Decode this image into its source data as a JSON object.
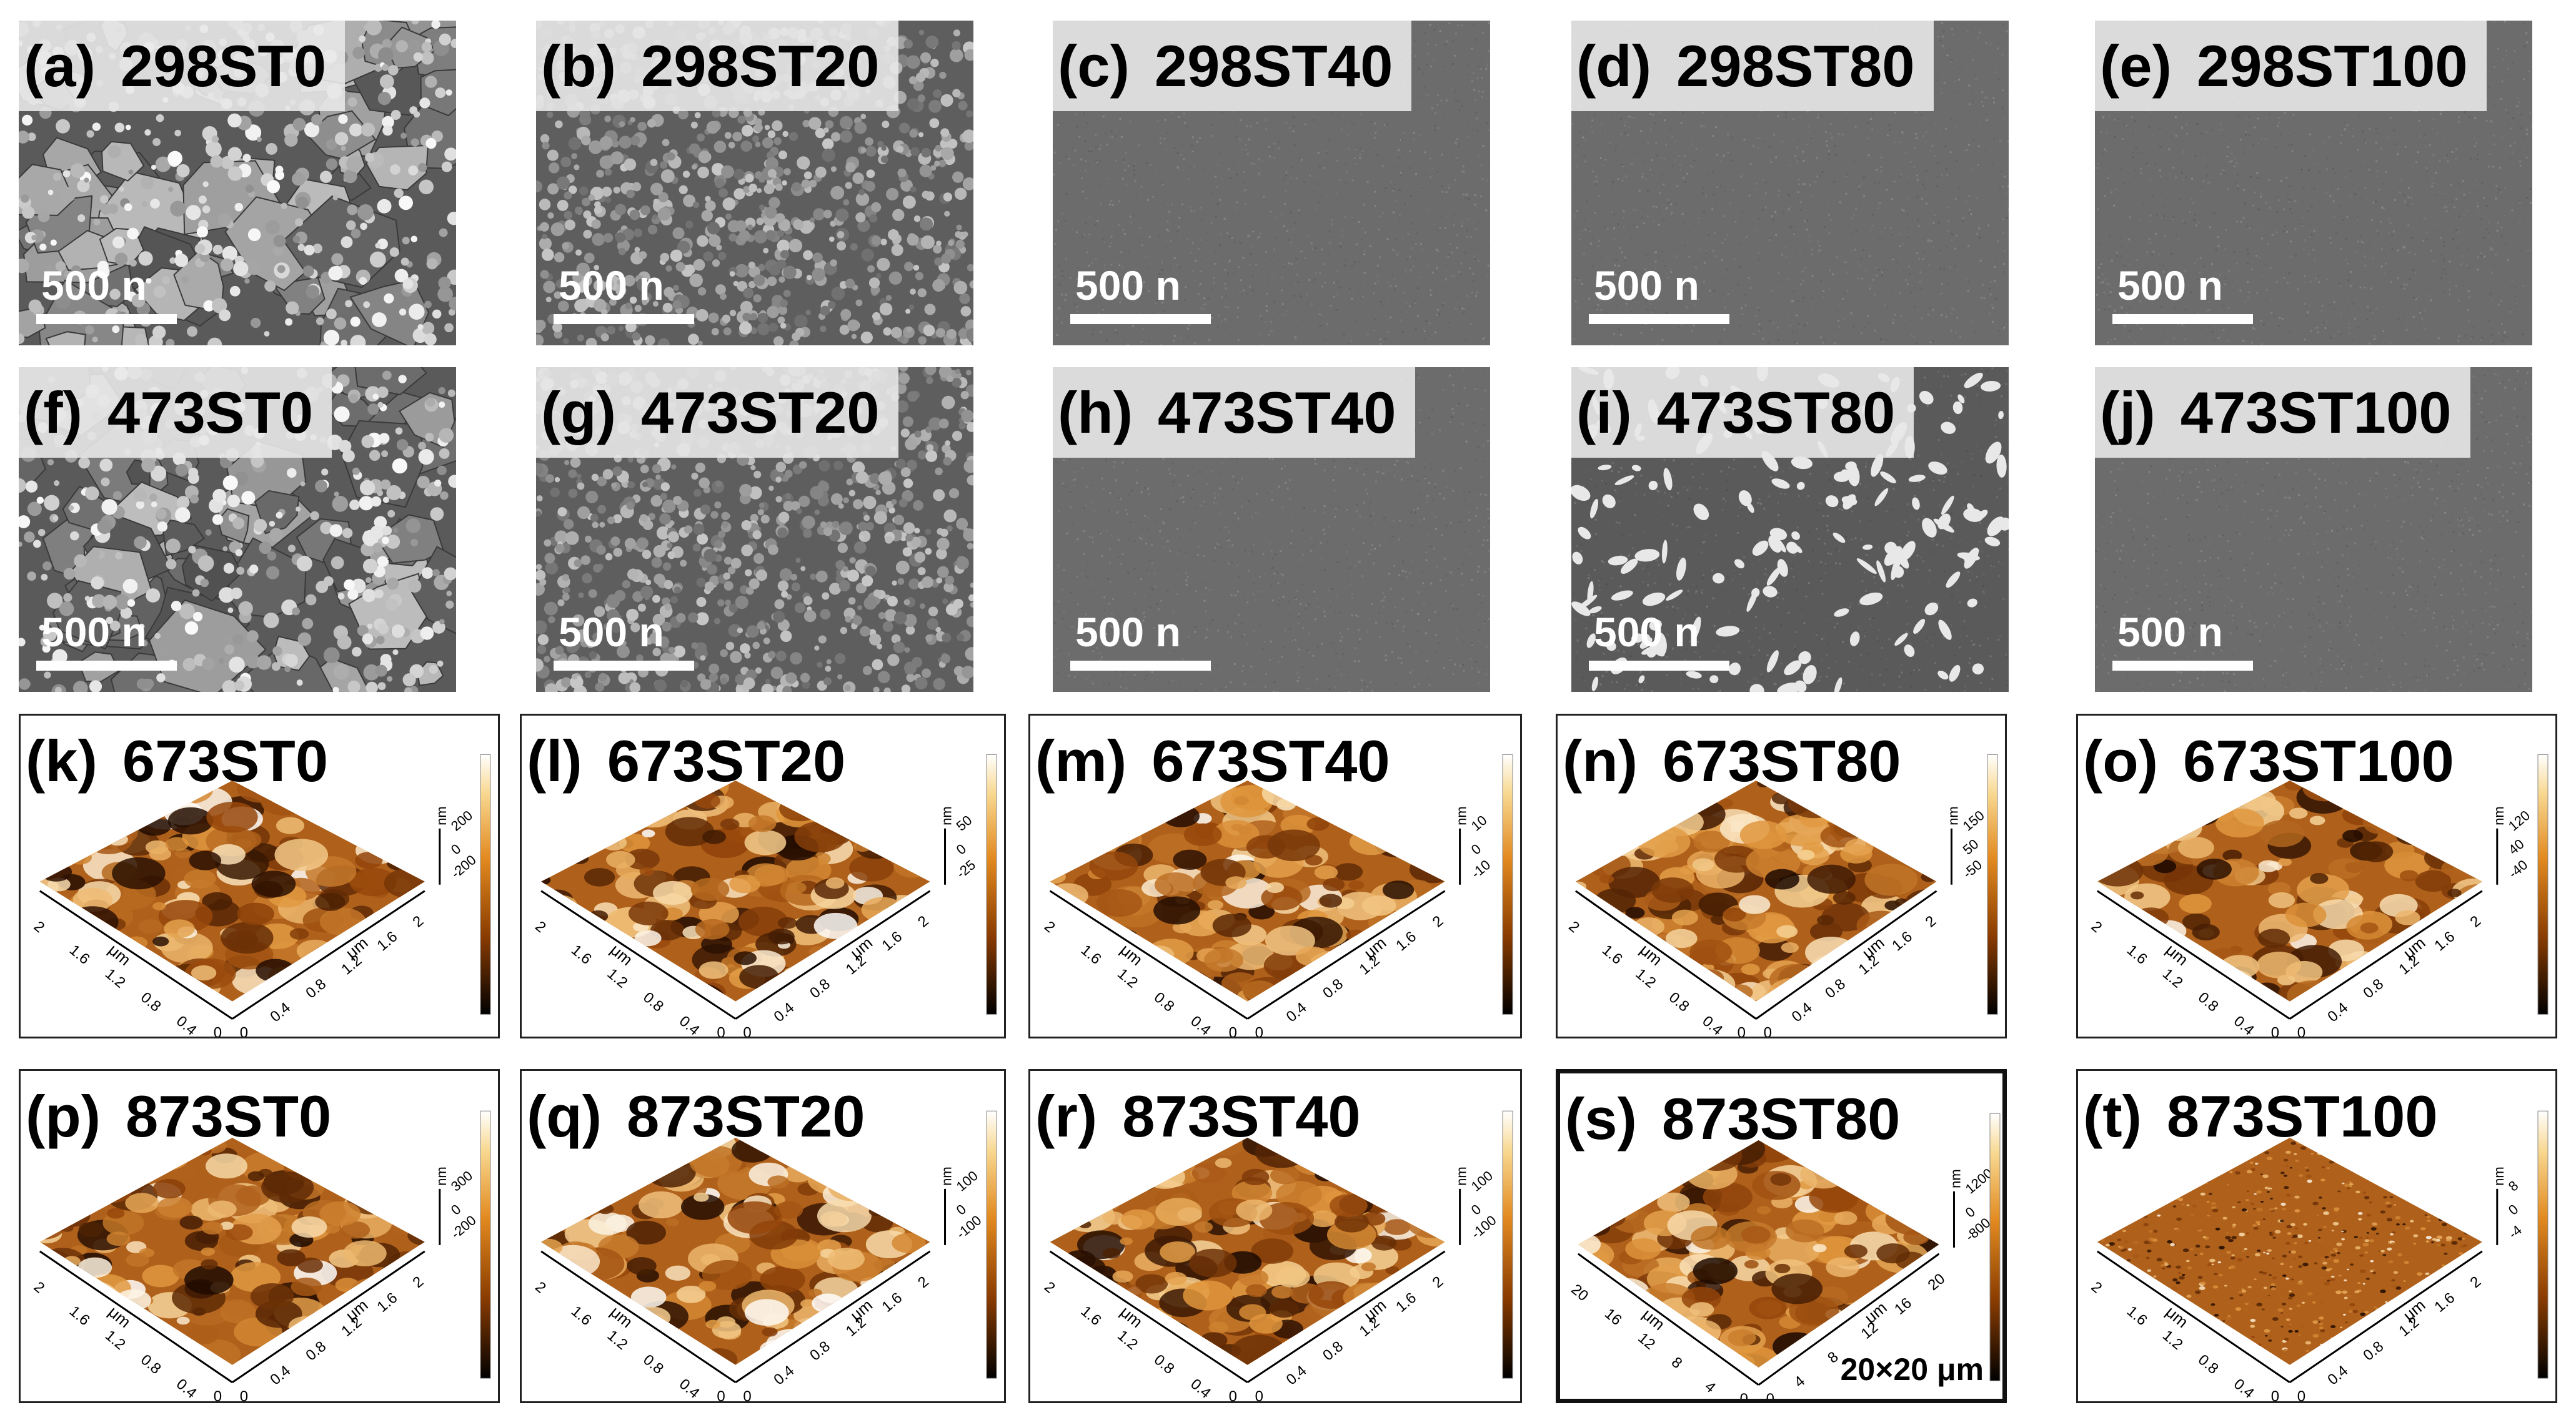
{
  "sem_panels": [
    {
      "letter": "(a)",
      "name": "298ST0",
      "scale": "500  n",
      "row": 0,
      "col": 0,
      "tone": "rough"
    },
    {
      "letter": "(b)",
      "name": "298ST20",
      "scale": "500  n",
      "row": 0,
      "col": 1,
      "tone": "grainy"
    },
    {
      "letter": "(c)",
      "name": "298ST40",
      "scale": "500  n",
      "row": 0,
      "col": 2,
      "tone": "smooth"
    },
    {
      "letter": "(d)",
      "name": "298ST80",
      "scale": "500  n",
      "row": 0,
      "col": 3,
      "tone": "smooth"
    },
    {
      "letter": "(e)",
      "name": "298ST100",
      "scale": "500  n",
      "row": 0,
      "col": 4,
      "tone": "smooth"
    },
    {
      "letter": "(f)",
      "name": "473ST0",
      "scale": "500  n",
      "row": 1,
      "col": 0,
      "tone": "rough"
    },
    {
      "letter": "(g)",
      "name": "473ST20",
      "scale": "500  n",
      "row": 1,
      "col": 1,
      "tone": "grainy"
    },
    {
      "letter": "(h)",
      "name": "473ST40",
      "scale": "500  n",
      "row": 1,
      "col": 2,
      "tone": "smooth"
    },
    {
      "letter": "(i)",
      "name": "473ST80",
      "scale": "500  n",
      "row": 1,
      "col": 3,
      "tone": "particles"
    },
    {
      "letter": "(j)",
      "name": "473ST100",
      "scale": "500  n",
      "row": 1,
      "col": 4,
      "tone": "smooth"
    }
  ],
  "afm_panels": [
    {
      "letter": "(k)",
      "name": "673ST0",
      "row": 0,
      "col": 0,
      "xlab": "μm",
      "zlab": "nm",
      "ticks": [
        "0.4",
        "0.8",
        "1.2",
        "1.6",
        "2"
      ],
      "z": [
        "200",
        "0",
        "-200"
      ]
    },
    {
      "letter": "(l)",
      "name": "673ST20",
      "row": 0,
      "col": 1,
      "xlab": "μm",
      "zlab": "nm",
      "ticks": [
        "0.4",
        "0.8",
        "1.2",
        "1.6",
        "2"
      ],
      "z": [
        "50",
        "0",
        "-25"
      ]
    },
    {
      "letter": "(m)",
      "name": "673ST40",
      "row": 0,
      "col": 2,
      "xlab": "μm",
      "zlab": "nm",
      "ticks": [
        "0.4",
        "0.8",
        "1.2",
        "1.6",
        "2"
      ],
      "z": [
        "10",
        "0",
        "-10"
      ]
    },
    {
      "letter": "(n)",
      "name": "673ST80",
      "row": 0,
      "col": 3,
      "xlab": "μm",
      "zlab": "nm",
      "ticks": [
        "0.4",
        "0.8",
        "1.2",
        "1.6",
        "2"
      ],
      "z": [
        "150",
        "50",
        "-50"
      ]
    },
    {
      "letter": "(o)",
      "name": "673ST100",
      "row": 0,
      "col": 4,
      "xlab": "μm",
      "zlab": "nm",
      "ticks": [
        "0.4",
        "0.8",
        "1.2",
        "1.6",
        "2"
      ],
      "z": [
        "120",
        "40",
        "-40"
      ]
    },
    {
      "letter": "(p)",
      "name": "873ST0",
      "row": 1,
      "col": 0,
      "xlab": "μm",
      "zlab": "nm",
      "ticks": [
        "0.4",
        "0.8",
        "1.2",
        "1.6",
        "2"
      ],
      "z": [
        "300",
        "0",
        "-200"
      ]
    },
    {
      "letter": "(q)",
      "name": "873ST20",
      "row": 1,
      "col": 1,
      "xlab": "μm",
      "zlab": "nm",
      "ticks": [
        "0.4",
        "0.8",
        "1.2",
        "1.6",
        "2"
      ],
      "z": [
        "100",
        "0",
        "-100"
      ]
    },
    {
      "letter": "(r)",
      "name": "873ST40",
      "row": 1,
      "col": 2,
      "xlab": "μm",
      "zlab": "nm",
      "ticks": [
        "0.4",
        "0.8",
        "1.2",
        "1.6",
        "2"
      ],
      "z": [
        "100",
        "0",
        "-100"
      ]
    },
    {
      "letter": "(s)",
      "name": "873ST80",
      "row": 1,
      "col": 3,
      "xlab": "μm",
      "zlab": "nm",
      "ticks": [
        "4",
        "8",
        "12",
        "16",
        "20"
      ],
      "z": [
        "1200",
        "0",
        "-800"
      ],
      "footer": "20×20  μm"
    },
    {
      "letter": "(t)",
      "name": "873ST100",
      "row": 1,
      "col": 4,
      "xlab": "μm",
      "zlab": "nm",
      "ticks": [
        "0.4",
        "0.8",
        "1.2",
        "1.6",
        "2"
      ],
      "z": [
        "8",
        "0",
        "-4"
      ]
    }
  ],
  "colors": {
    "afm_dark": "#1a0800",
    "afm_mid": "#b45a10",
    "afm_light": "#f4c27a",
    "afm_peak": "#ffffff",
    "sem_bg": "#6a6a6a"
  }
}
